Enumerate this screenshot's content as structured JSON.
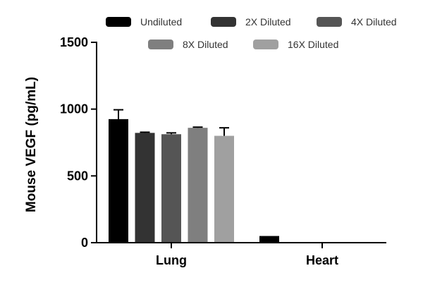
{
  "chart_data": {
    "type": "bar",
    "title": "",
    "xlabel": "",
    "ylabel": "Mouse VEGF (pg/mL)",
    "ylim": [
      0,
      1500
    ],
    "yticks": [
      0,
      500,
      1000,
      1500
    ],
    "grid": false,
    "legend_position": "top",
    "categories": [
      "Lung",
      "Heart"
    ],
    "series": [
      {
        "name": "Undiluted",
        "color": "#000000",
        "values": [
          925,
          50
        ],
        "errors": [
          70,
          0
        ]
      },
      {
        "name": "2X Diluted",
        "color": "#333333",
        "values": [
          822,
          null
        ],
        "errors": [
          5,
          null
        ]
      },
      {
        "name": "4X Diluted",
        "color": "#555555",
        "values": [
          812,
          null
        ],
        "errors": [
          10,
          null
        ]
      },
      {
        "name": "8X Diluted",
        "color": "#7f7f7f",
        "values": [
          860,
          null
        ],
        "errors": [
          5,
          null
        ]
      },
      {
        "name": "16X Diluted",
        "color": "#a0a0a0",
        "values": [
          800,
          null
        ],
        "errors": [
          60,
          null
        ]
      }
    ]
  }
}
